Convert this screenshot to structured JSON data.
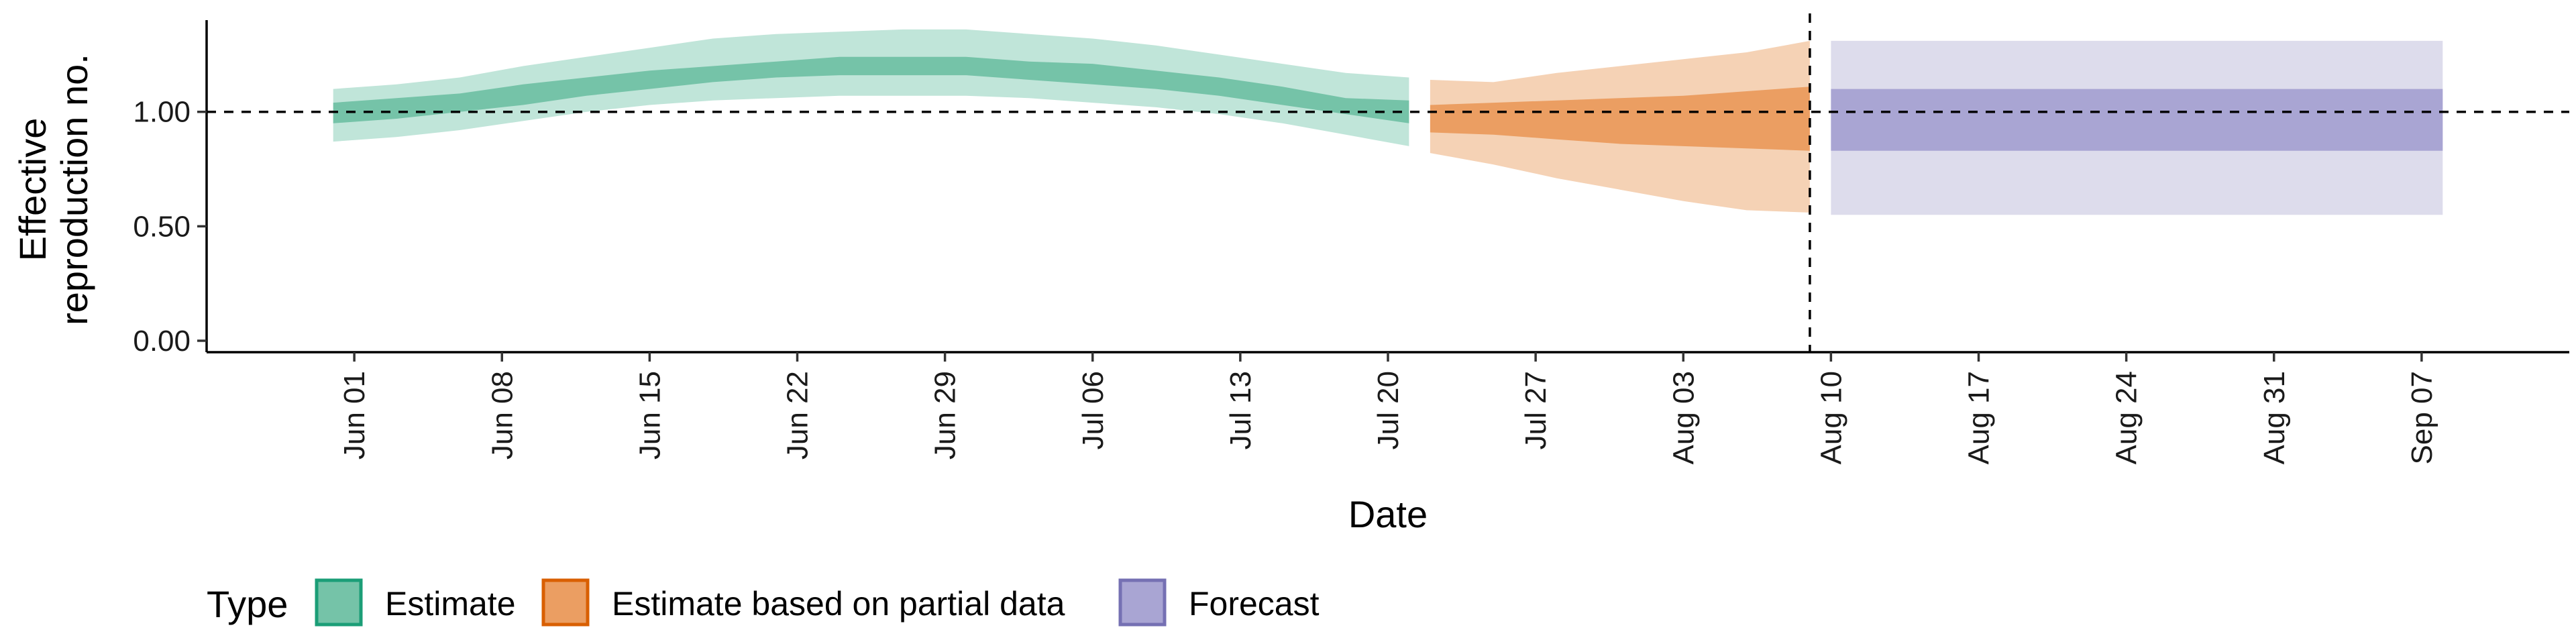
{
  "chart_data": {
    "type": "area",
    "title": "",
    "xlabel": "Date",
    "ylabel": [
      "Effective",
      "reproduction no."
    ],
    "y_ticks": [
      "0.00",
      "0.50",
      "1.00"
    ],
    "y_tick_values": [
      0,
      0.5,
      1.0
    ],
    "ylim": [
      -0.05,
      1.43
    ],
    "x_ticks": [
      {
        "date": "2020-06-01",
        "label": "Jun 01"
      },
      {
        "date": "2020-06-08",
        "label": "Jun 08"
      },
      {
        "date": "2020-06-15",
        "label": "Jun 15"
      },
      {
        "date": "2020-06-22",
        "label": "Jun 22"
      },
      {
        "date": "2020-06-29",
        "label": "Jun 29"
      },
      {
        "date": "2020-07-06",
        "label": "Jul 06"
      },
      {
        "date": "2020-07-13",
        "label": "Jul 13"
      },
      {
        "date": "2020-07-20",
        "label": "Jul 20"
      },
      {
        "date": "2020-07-27",
        "label": "Jul 27"
      },
      {
        "date": "2020-08-03",
        "label": "Aug 03"
      },
      {
        "date": "2020-08-10",
        "label": "Aug 10"
      },
      {
        "date": "2020-08-17",
        "label": "Aug 17"
      },
      {
        "date": "2020-08-24",
        "label": "Aug 24"
      },
      {
        "date": "2020-08-31",
        "label": "Aug 31"
      },
      {
        "date": "2020-09-07",
        "label": "Sep 07"
      }
    ],
    "xlim": [
      "2020-05-25",
      "2020-09-14"
    ],
    "reference_line_y": 1.0,
    "vertical_line_x": "2020-08-09",
    "legend": {
      "title": "Type",
      "position": "bottom-left",
      "entries": [
        {
          "name": "Estimate",
          "fill": "#75c3a8",
          "border": "#1b9e77"
        },
        {
          "name": "Estimate based on partial data",
          "fill": "#eb9e62",
          "border": "#d95f02"
        },
        {
          "name": "Forecast",
          "fill": "#a9a5d3",
          "border": "#7570b3"
        }
      ]
    },
    "series": [
      {
        "name": "Estimate",
        "color_outer": "#c0e5d9",
        "color_inner": "#75c3a8",
        "points": [
          {
            "date": "2020-05-31",
            "lo90": 0.87,
            "lo50": 0.95,
            "hi50": 1.04,
            "hi90": 1.1
          },
          {
            "date": "2020-06-03",
            "lo90": 0.89,
            "lo50": 0.97,
            "hi50": 1.06,
            "hi90": 1.12
          },
          {
            "date": "2020-06-06",
            "lo90": 0.92,
            "lo50": 1.0,
            "hi50": 1.08,
            "hi90": 1.15
          },
          {
            "date": "2020-06-09",
            "lo90": 0.96,
            "lo50": 1.03,
            "hi50": 1.12,
            "hi90": 1.2
          },
          {
            "date": "2020-06-12",
            "lo90": 1.0,
            "lo50": 1.07,
            "hi50": 1.15,
            "hi90": 1.24
          },
          {
            "date": "2020-06-15",
            "lo90": 1.03,
            "lo50": 1.1,
            "hi50": 1.18,
            "hi90": 1.28
          },
          {
            "date": "2020-06-18",
            "lo90": 1.05,
            "lo50": 1.13,
            "hi50": 1.2,
            "hi90": 1.32
          },
          {
            "date": "2020-06-21",
            "lo90": 1.06,
            "lo50": 1.15,
            "hi50": 1.22,
            "hi90": 1.34
          },
          {
            "date": "2020-06-24",
            "lo90": 1.07,
            "lo50": 1.16,
            "hi50": 1.24,
            "hi90": 1.35
          },
          {
            "date": "2020-06-27",
            "lo90": 1.07,
            "lo50": 1.16,
            "hi50": 1.24,
            "hi90": 1.36
          },
          {
            "date": "2020-06-30",
            "lo90": 1.07,
            "lo50": 1.16,
            "hi50": 1.24,
            "hi90": 1.36
          },
          {
            "date": "2020-07-03",
            "lo90": 1.06,
            "lo50": 1.14,
            "hi50": 1.22,
            "hi90": 1.34
          },
          {
            "date": "2020-07-06",
            "lo90": 1.04,
            "lo50": 1.12,
            "hi50": 1.21,
            "hi90": 1.32
          },
          {
            "date": "2020-07-09",
            "lo90": 1.02,
            "lo50": 1.1,
            "hi50": 1.18,
            "hi90": 1.29
          },
          {
            "date": "2020-07-12",
            "lo90": 0.99,
            "lo50": 1.07,
            "hi50": 1.15,
            "hi90": 1.25
          },
          {
            "date": "2020-07-15",
            "lo90": 0.95,
            "lo50": 1.03,
            "hi50": 1.11,
            "hi90": 1.21
          },
          {
            "date": "2020-07-18",
            "lo90": 0.9,
            "lo50": 0.99,
            "hi50": 1.06,
            "hi90": 1.17
          },
          {
            "date": "2020-07-21",
            "lo90": 0.85,
            "lo50": 0.95,
            "hi50": 1.05,
            "hi90": 1.15
          }
        ]
      },
      {
        "name": "Estimate based on partial data",
        "color_outer": "#f5d2b5",
        "color_inner": "#eb9e62",
        "points": [
          {
            "date": "2020-07-22",
            "lo90": 0.82,
            "lo50": 0.91,
            "hi50": 1.03,
            "hi90": 1.14
          },
          {
            "date": "2020-07-25",
            "lo90": 0.77,
            "lo50": 0.9,
            "hi50": 1.04,
            "hi90": 1.13
          },
          {
            "date": "2020-07-28",
            "lo90": 0.71,
            "lo50": 0.88,
            "hi50": 1.05,
            "hi90": 1.17
          },
          {
            "date": "2020-07-31",
            "lo90": 0.66,
            "lo50": 0.86,
            "hi50": 1.06,
            "hi90": 1.2
          },
          {
            "date": "2020-08-03",
            "lo90": 0.61,
            "lo50": 0.85,
            "hi50": 1.07,
            "hi90": 1.23
          },
          {
            "date": "2020-08-06",
            "lo90": 0.57,
            "lo50": 0.84,
            "hi50": 1.09,
            "hi90": 1.26
          },
          {
            "date": "2020-08-09",
            "lo90": 0.56,
            "lo50": 0.83,
            "hi50": 1.11,
            "hi90": 1.31
          }
        ]
      },
      {
        "name": "Forecast",
        "color_outer": "#dddcec",
        "color_inner": "#a9a5d3",
        "points": [
          {
            "date": "2020-08-10",
            "lo90": 0.55,
            "lo50": 0.83,
            "hi50": 1.1,
            "hi90": 1.31
          },
          {
            "date": "2020-09-08",
            "lo90": 0.55,
            "lo50": 0.83,
            "hi50": 1.1,
            "hi90": 1.31
          }
        ]
      }
    ]
  }
}
